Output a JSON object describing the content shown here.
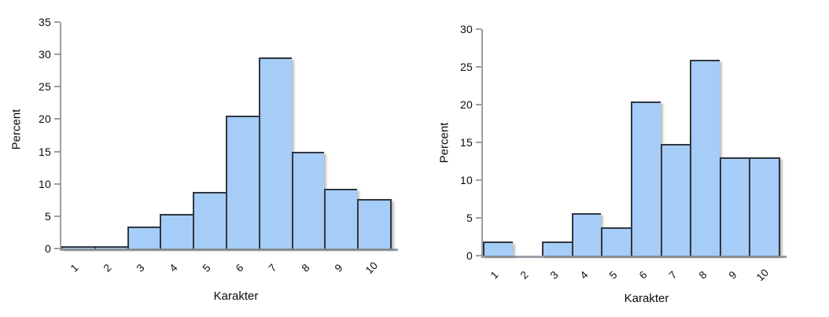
{
  "colors": {
    "bar_fill": "#a5cdf8",
    "bar_border": "#32363f",
    "axis_color": "#9aa0a7",
    "background": "#ffffff",
    "text": "#0c0c0c"
  },
  "chart_data": [
    {
      "type": "bar",
      "subtype": "histogram",
      "categories": [
        "1",
        "2",
        "3",
        "4",
        "5",
        "6",
        "7",
        "8",
        "9",
        "10"
      ],
      "values": [
        0.4,
        0.4,
        3.4,
        5.3,
        8.7,
        20.6,
        29.5,
        15.0,
        9.2,
        7.7
      ],
      "xlabel": "Karakter",
      "ylabel": "Percent",
      "ylim": [
        0,
        35
      ],
      "yticks": [
        0,
        5,
        10,
        15,
        20,
        25,
        30,
        35
      ],
      "grid": false,
      "legend": null,
      "x_tick_rotation_deg": 45
    },
    {
      "type": "bar",
      "subtype": "histogram",
      "categories": [
        "1",
        "2",
        "3",
        "4",
        "5",
        "6",
        "7",
        "8",
        "9",
        "10"
      ],
      "values": [
        1.9,
        0,
        1.9,
        5.6,
        3.7,
        20.4,
        14.8,
        25.9,
        13.0,
        13.0
      ],
      "xlabel": "Karakter",
      "ylabel": "Percent",
      "ylim": [
        0,
        30
      ],
      "yticks": [
        0,
        5,
        10,
        15,
        20,
        25,
        30
      ],
      "grid": false,
      "legend": null,
      "x_tick_rotation_deg": 45
    }
  ]
}
